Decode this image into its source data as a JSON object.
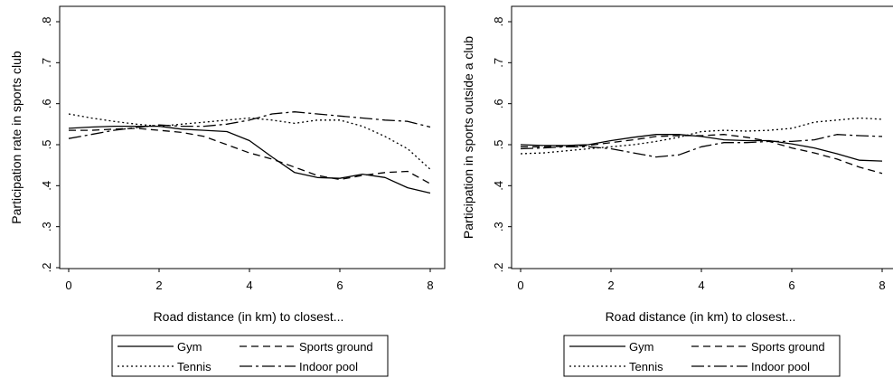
{
  "chart_data": [
    {
      "type": "line",
      "xlabel": "Road distance (in km) to closest...",
      "ylabel": "Participation rate in sports club",
      "xlim": [
        0,
        8
      ],
      "ylim": [
        0.2,
        0.8
      ],
      "xticks": [
        "0",
        "2",
        "4",
        "6",
        "8"
      ],
      "yticks": [
        ".2",
        ".3",
        ".4",
        ".5",
        ".6",
        ".7",
        ".8"
      ],
      "legend_position": "bottom",
      "x": [
        0,
        0.5,
        1,
        1.5,
        2,
        2.5,
        3,
        3.5,
        4,
        4.5,
        5,
        5.5,
        6,
        6.5,
        7,
        7.5,
        8
      ],
      "series": [
        {
          "name": "Gym",
          "style": "solid",
          "values": [
            0.54,
            0.543,
            0.545,
            0.545,
            0.545,
            0.538,
            0.535,
            0.532,
            0.51,
            0.47,
            0.432,
            0.42,
            0.418,
            0.428,
            0.42,
            0.395,
            0.382
          ]
        },
        {
          "name": "Sports ground",
          "style": "dash",
          "values": [
            0.535,
            0.535,
            0.538,
            0.54,
            0.535,
            0.53,
            0.52,
            0.5,
            0.48,
            0.465,
            0.445,
            0.425,
            0.415,
            0.425,
            0.432,
            0.435,
            0.405
          ]
        },
        {
          "name": "Tennis",
          "style": "dot",
          "values": [
            0.575,
            0.565,
            0.557,
            0.55,
            0.545,
            0.55,
            0.555,
            0.56,
            0.565,
            0.56,
            0.552,
            0.56,
            0.56,
            0.545,
            0.52,
            0.49,
            0.44
          ]
        },
        {
          "name": "Indoor pool",
          "style": "dashdot",
          "values": [
            0.515,
            0.525,
            0.535,
            0.542,
            0.548,
            0.545,
            0.545,
            0.55,
            0.56,
            0.575,
            0.58,
            0.575,
            0.57,
            0.565,
            0.56,
            0.557,
            0.543
          ]
        }
      ]
    },
    {
      "type": "line",
      "xlabel": "Road distance (in km) to closest...",
      "ylabel": "Participation  in sports outside a club",
      "xlim": [
        0,
        8
      ],
      "ylim": [
        0.2,
        0.8
      ],
      "xticks": [
        "0",
        "2",
        "4",
        "6",
        "8"
      ],
      "yticks": [
        ".2",
        ".3",
        ".4",
        ".5",
        ".6",
        ".7",
        ".8"
      ],
      "legend_position": "bottom",
      "x": [
        0,
        0.5,
        1,
        1.5,
        2,
        2.5,
        3,
        3.5,
        4,
        4.5,
        5,
        5.5,
        6,
        6.5,
        7,
        7.5,
        8
      ],
      "series": [
        {
          "name": "Gym",
          "style": "solid",
          "values": [
            0.5,
            0.498,
            0.498,
            0.5,
            0.51,
            0.518,
            0.525,
            0.525,
            0.52,
            0.512,
            0.51,
            0.51,
            0.502,
            0.492,
            0.478,
            0.462,
            0.46
          ]
        },
        {
          "name": "Sports ground",
          "style": "dash",
          "values": [
            0.495,
            0.495,
            0.496,
            0.498,
            0.505,
            0.512,
            0.52,
            0.522,
            0.522,
            0.525,
            0.518,
            0.508,
            0.492,
            0.48,
            0.465,
            0.445,
            0.43
          ]
        },
        {
          "name": "Tennis",
          "style": "dot",
          "values": [
            0.478,
            0.48,
            0.485,
            0.49,
            0.495,
            0.5,
            0.508,
            0.518,
            0.532,
            0.535,
            0.533,
            0.535,
            0.54,
            0.555,
            0.56,
            0.565,
            0.562
          ]
        },
        {
          "name": "Indoor pool",
          "style": "dashdot",
          "values": [
            0.49,
            0.492,
            0.495,
            0.495,
            0.49,
            0.48,
            0.47,
            0.475,
            0.495,
            0.505,
            0.505,
            0.508,
            0.508,
            0.512,
            0.525,
            0.522,
            0.52
          ]
        }
      ]
    }
  ]
}
